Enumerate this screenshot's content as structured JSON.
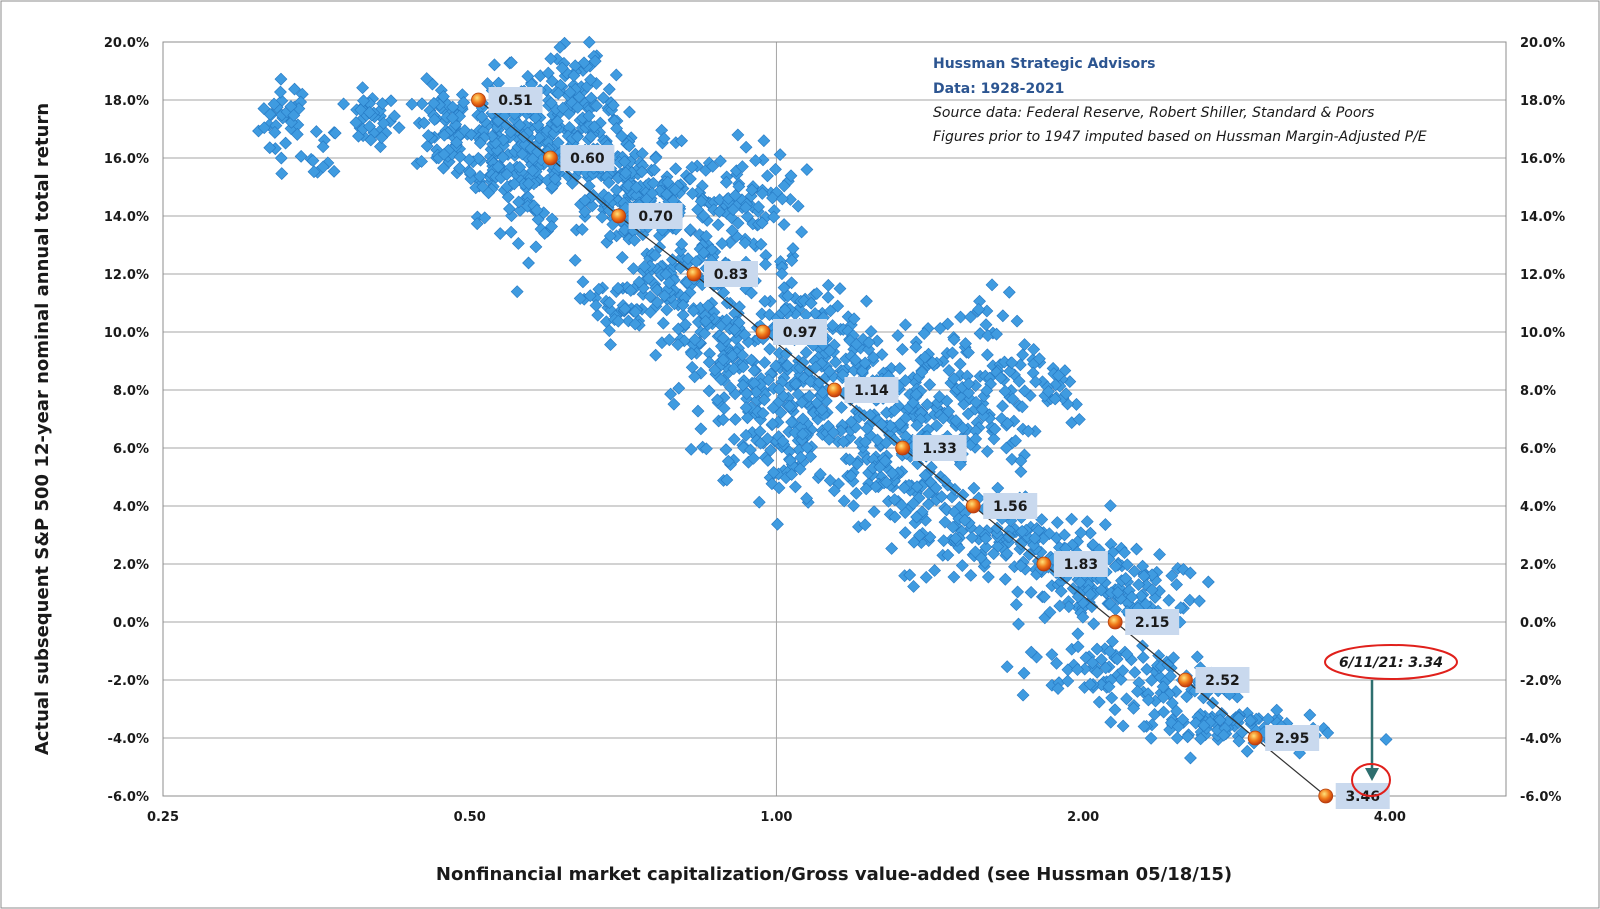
{
  "chart_data": {
    "type": "scatter",
    "title": "",
    "xlabel": "Nonfinancial market capitalization/Gross value-added (see Hussman 05/18/15)",
    "ylabel": "Actual subsequent S&P 500 12-year nominal annual total return",
    "x_scale": "log",
    "xlim": [
      0.25,
      5.2
    ],
    "ylim": [
      -6.0,
      20.0
    ],
    "x_ticks": [
      0.25,
      0.5,
      1.0,
      2.0,
      4.0
    ],
    "x_tick_labels": [
      "0.25",
      "0.50",
      "1.00",
      "2.00",
      "4.00"
    ],
    "y_ticks": [
      -6,
      -4,
      -2,
      0,
      2,
      4,
      6,
      8,
      10,
      12,
      14,
      16,
      18,
      20
    ],
    "y_tick_labels": [
      "-6.0%",
      "-4.0%",
      "-2.0%",
      "0.0%",
      "2.0%",
      "4.0%",
      "6.0%",
      "8.0%",
      "10.0%",
      "12.0%",
      "14.0%",
      "16.0%",
      "18.0%",
      "20.0%"
    ],
    "grid": true,
    "annotations": {
      "heading_lines": [
        "Hussman Strategic Advisors",
        "Data: 1928-2021"
      ],
      "note_lines": [
        "Source data: Federal Reserve, Robert Shiller, Standard & Poors",
        "Figures prior to 1947  imputed based on Hussman Margin-Adjusted P/E"
      ],
      "callout": "6/11/21: 3.34"
    },
    "colors": {
      "scatter": "#3f9be0",
      "scatter_edge": "#2578c2",
      "fit_point": "#f07818",
      "label_box": "#c9d9ee",
      "callout": "#e0201b",
      "arrow": "#2e6f6f"
    },
    "fit_points": [
      {
        "x": 0.51,
        "y": 18.0,
        "label": "0.51"
      },
      {
        "x": 0.6,
        "y": 16.0,
        "label": "0.60"
      },
      {
        "x": 0.7,
        "y": 14.0,
        "label": "0.70"
      },
      {
        "x": 0.83,
        "y": 12.0,
        "label": "0.83"
      },
      {
        "x": 0.97,
        "y": 10.0,
        "label": "0.97"
      },
      {
        "x": 1.14,
        "y": 8.0,
        "label": "1.14"
      },
      {
        "x": 1.33,
        "y": 6.0,
        "label": "1.33"
      },
      {
        "x": 1.56,
        "y": 4.0,
        "label": "1.56"
      },
      {
        "x": 1.83,
        "y": 2.0,
        "label": "1.83"
      },
      {
        "x": 2.15,
        "y": 0.0,
        "label": "2.15"
      },
      {
        "x": 2.52,
        "y": -2.0,
        "label": "2.52"
      },
      {
        "x": 2.95,
        "y": -4.0,
        "label": "2.95"
      },
      {
        "x": 3.46,
        "y": -6.0,
        "label": "3.46"
      }
    ],
    "current_point": {
      "x": 3.34,
      "y": -5.5
    },
    "scatter_clusters": [
      {
        "x": 0.33,
        "y": 17.3,
        "sx": 0.03,
        "sy": 0.7,
        "n": 35
      },
      {
        "x": 0.36,
        "y": 16.0,
        "sx": 0.015,
        "sy": 0.6,
        "n": 12
      },
      {
        "x": 0.4,
        "y": 17.3,
        "sx": 0.03,
        "sy": 0.45,
        "n": 35
      },
      {
        "x": 0.47,
        "y": 17.0,
        "sx": 0.03,
        "sy": 0.8,
        "n": 60
      },
      {
        "x": 0.53,
        "y": 16.5,
        "sx": 0.04,
        "sy": 1.2,
        "n": 120
      },
      {
        "x": 0.58,
        "y": 15.8,
        "sx": 0.04,
        "sy": 1.3,
        "n": 120
      },
      {
        "x": 0.63,
        "y": 17.5,
        "sx": 0.035,
        "sy": 1.3,
        "n": 90
      },
      {
        "x": 0.68,
        "y": 16.0,
        "sx": 0.04,
        "sy": 1.2,
        "n": 90
      },
      {
        "x": 0.72,
        "y": 14.5,
        "sx": 0.05,
        "sy": 1.0,
        "n": 70
      },
      {
        "x": 0.78,
        "y": 14.8,
        "sx": 0.06,
        "sy": 1.0,
        "n": 70
      },
      {
        "x": 0.85,
        "y": 13.6,
        "sx": 0.05,
        "sy": 0.9,
        "n": 50
      },
      {
        "x": 0.91,
        "y": 14.5,
        "sx": 0.04,
        "sy": 0.8,
        "n": 35
      },
      {
        "x": 0.98,
        "y": 14.3,
        "sx": 0.04,
        "sy": 1.3,
        "n": 35
      },
      {
        "x": 0.7,
        "y": 10.9,
        "sx": 0.04,
        "sy": 0.6,
        "n": 40
      },
      {
        "x": 0.8,
        "y": 11.4,
        "sx": 0.06,
        "sy": 0.8,
        "n": 80
      },
      {
        "x": 0.87,
        "y": 9.8,
        "sx": 0.06,
        "sy": 1.2,
        "n": 100
      },
      {
        "x": 0.95,
        "y": 7.7,
        "sx": 0.05,
        "sy": 1.0,
        "n": 70
      },
      {
        "x": 1.05,
        "y": 10.3,
        "sx": 0.06,
        "sy": 0.9,
        "n": 70
      },
      {
        "x": 1.1,
        "y": 7.6,
        "sx": 0.07,
        "sy": 1.1,
        "n": 90
      },
      {
        "x": 1.02,
        "y": 5.5,
        "sx": 0.05,
        "sy": 1.0,
        "n": 50
      },
      {
        "x": 1.2,
        "y": 9.0,
        "sx": 0.07,
        "sy": 0.8,
        "n": 60
      },
      {
        "x": 1.28,
        "y": 6.5,
        "sx": 0.08,
        "sy": 1.2,
        "n": 120
      },
      {
        "x": 1.4,
        "y": 7.2,
        "sx": 0.07,
        "sy": 1.0,
        "n": 60
      },
      {
        "x": 1.35,
        "y": 4.7,
        "sx": 0.07,
        "sy": 1.0,
        "n": 70
      },
      {
        "x": 1.58,
        "y": 9.3,
        "sx": 0.07,
        "sy": 1.1,
        "n": 60
      },
      {
        "x": 1.8,
        "y": 8.2,
        "sx": 0.07,
        "sy": 0.7,
        "n": 40
      },
      {
        "x": 1.62,
        "y": 6.4,
        "sx": 0.06,
        "sy": 0.7,
        "n": 35
      },
      {
        "x": 1.58,
        "y": 2.7,
        "sx": 0.09,
        "sy": 0.7,
        "n": 70
      },
      {
        "x": 1.8,
        "y": 3.2,
        "sx": 0.07,
        "sy": 0.8,
        "n": 50
      },
      {
        "x": 1.95,
        "y": 1.6,
        "sx": 0.08,
        "sy": 0.7,
        "n": 60
      },
      {
        "x": 2.15,
        "y": 1.4,
        "sx": 0.08,
        "sy": 0.6,
        "n": 60
      },
      {
        "x": 2.28,
        "y": 0.6,
        "sx": 0.07,
        "sy": 0.4,
        "n": 30
      },
      {
        "x": 2.05,
        "y": -1.7,
        "sx": 0.08,
        "sy": 0.5,
        "n": 50
      },
      {
        "x": 2.4,
        "y": -2.2,
        "sx": 0.08,
        "sy": 0.6,
        "n": 60
      },
      {
        "x": 2.6,
        "y": -3.5,
        "sx": 0.1,
        "sy": 0.4,
        "n": 50
      },
      {
        "x": 2.85,
        "y": -3.7,
        "sx": 0.1,
        "sy": 0.35,
        "n": 40
      }
    ]
  }
}
